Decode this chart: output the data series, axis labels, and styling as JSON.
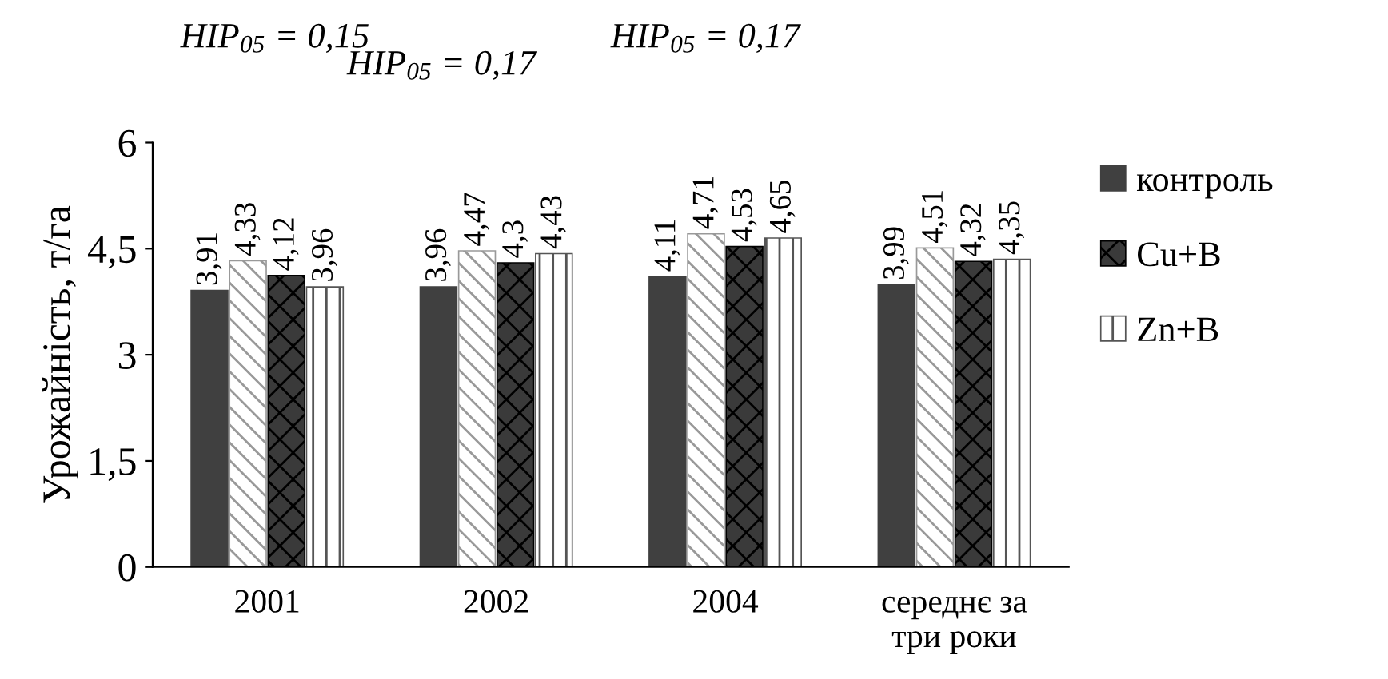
{
  "chart_data": {
    "type": "bar",
    "ylabel": "Урожайність, т/га",
    "categories": [
      "2001",
      "2002",
      "2004",
      "середнє за\nтри роки"
    ],
    "series": [
      {
        "name": "контроль",
        "color": "#404040",
        "values": [
          3.91,
          3.96,
          4.11,
          3.99
        ],
        "value_labels": [
          "3,91",
          "3,96",
          "4,11",
          "3,99"
        ]
      },
      {
        "color": "#999999",
        "values": [
          4.33,
          4.47,
          4.71,
          4.51
        ],
        "value_labels": [
          "4,33",
          "4,47",
          "4,71",
          "4,51"
        ]
      },
      {
        "name": "Cu+B",
        "color": "#000000",
        "values": [
          4.12,
          4.3,
          4.53,
          4.32
        ],
        "value_labels": [
          "4,12",
          "4,3",
          "4,53",
          "4,32"
        ]
      },
      {
        "name": "Zn+B",
        "color": "#555555",
        "values": [
          3.96,
          4.43,
          4.65,
          4.35
        ],
        "value_labels": [
          "3,96",
          "4,43",
          "4,65",
          "4,35"
        ]
      }
    ],
    "ylim": [
      0,
      6
    ],
    "yticks": [
      0,
      {
        "value": 1.5,
        "label": "1,5"
      },
      3,
      {
        "value": 4.5,
        "label": "4,5"
      },
      6
    ],
    "annotations": [
      "HIP$_{05}$ = 0,15",
      "HIP$_{05}$ = 0,17",
      "HIP$_{05}$ = 0,17"
    ],
    "grid": false,
    "legend": "right"
  }
}
